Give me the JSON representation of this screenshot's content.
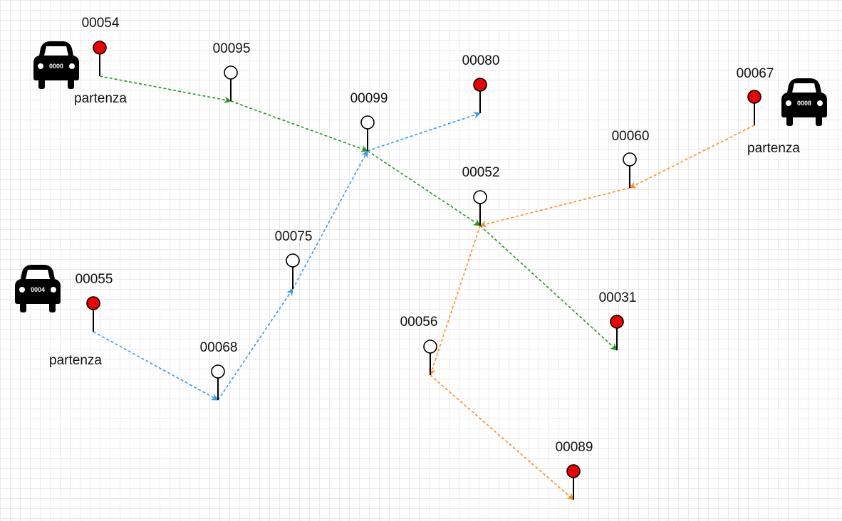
{
  "colors": {
    "route_a": "#1a9a1a",
    "route_b": "#ff8c1a",
    "route_c": "#3399ee",
    "endpoint": "#ee0000",
    "waypoint": "#ffffff",
    "grid": "#e9e9e9"
  },
  "cars": [
    {
      "id": "car-0000",
      "plate": "0000"
    },
    {
      "id": "car-0008",
      "plate": "0008"
    },
    {
      "id": "car-0004",
      "plate": "0004"
    }
  ],
  "start_labels": [
    {
      "id": "start-0000",
      "text": "partenza"
    },
    {
      "id": "start-0008",
      "text": "partenza"
    },
    {
      "id": "start-0004",
      "text": "partenza"
    }
  ],
  "nodes": [
    {
      "id": "00054",
      "label": "00054",
      "kind": "endpoint"
    },
    {
      "id": "00095",
      "label": "00095",
      "kind": "waypoint"
    },
    {
      "id": "00099",
      "label": "00099",
      "kind": "waypoint"
    },
    {
      "id": "00080",
      "label": "00080",
      "kind": "endpoint"
    },
    {
      "id": "00067",
      "label": "00067",
      "kind": "endpoint"
    },
    {
      "id": "00060",
      "label": "00060",
      "kind": "waypoint"
    },
    {
      "id": "00052",
      "label": "00052",
      "kind": "waypoint"
    },
    {
      "id": "00075",
      "label": "00075",
      "kind": "waypoint"
    },
    {
      "id": "00055",
      "label": "00055",
      "kind": "endpoint"
    },
    {
      "id": "00068",
      "label": "00068",
      "kind": "waypoint"
    },
    {
      "id": "00031",
      "label": "00031",
      "kind": "endpoint"
    },
    {
      "id": "00056",
      "label": "00056",
      "kind": "waypoint"
    },
    {
      "id": "00089",
      "label": "00089",
      "kind": "endpoint"
    }
  ],
  "routes": [
    {
      "id": "route-0000",
      "color_key": "route_a",
      "stops": [
        "00054",
        "00095",
        "00099",
        "00052",
        "00031"
      ]
    },
    {
      "id": "route-0008",
      "color_key": "route_b",
      "stops": [
        "00067",
        "00060",
        "00052",
        "00056",
        "00089"
      ]
    },
    {
      "id": "route-0004",
      "color_key": "route_c",
      "stops": [
        "00055",
        "00068",
        "00075",
        "00099",
        "00080"
      ]
    }
  ]
}
